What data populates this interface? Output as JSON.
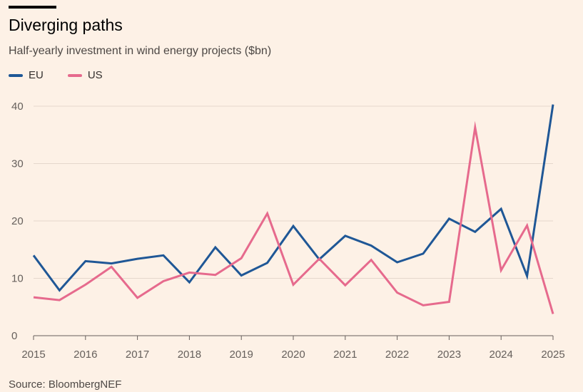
{
  "header": {
    "title": "Diverging paths",
    "subtitle": "Half-yearly investment in wind energy projects ($bn)"
  },
  "footer": {
    "source": "Source: BloombergNEF"
  },
  "colors": {
    "EU": "#1f5796",
    "US": "#e66a8d",
    "grid": "#e5d8cc",
    "axis": "#66605c",
    "background": "#fdf1e6"
  },
  "chart_data": {
    "type": "line",
    "title": "Diverging paths",
    "subtitle": "Half-yearly investment in wind energy projects ($bn)",
    "xlabel": "",
    "ylabel": "",
    "x_ticks": [
      "2015",
      "2016",
      "2017",
      "2018",
      "2019",
      "2020",
      "2021",
      "2022",
      "2023",
      "2024",
      "2025"
    ],
    "y_ticks": [
      0,
      10,
      20,
      30,
      40
    ],
    "xlim": [
      2015,
      2025
    ],
    "ylim": [
      0,
      40
    ],
    "grid": "horizontal",
    "legend": "top-left",
    "x": [
      2015,
      2015.5,
      2016,
      2016.5,
      2017,
      2017.5,
      2018,
      2018.5,
      2019,
      2019.5,
      2020,
      2020.5,
      2021,
      2021.5,
      2022,
      2022.5,
      2023,
      2023.5,
      2024,
      2024.5,
      2025
    ],
    "series": [
      {
        "name": "EU",
        "values": [
          14.0,
          7.9,
          13.0,
          12.6,
          13.4,
          14.0,
          9.3,
          15.4,
          10.5,
          12.7,
          19.1,
          13.3,
          17.4,
          15.7,
          12.8,
          14.3,
          20.4,
          18.1,
          22.1,
          10.4,
          40.3
        ]
      },
      {
        "name": "US",
        "values": [
          6.7,
          6.2,
          8.9,
          12.0,
          6.6,
          9.5,
          11.0,
          10.6,
          13.5,
          21.3,
          8.9,
          13.4,
          8.8,
          13.2,
          7.5,
          5.3,
          5.9,
          36.3,
          11.4,
          19.2,
          3.8
        ]
      }
    ]
  }
}
